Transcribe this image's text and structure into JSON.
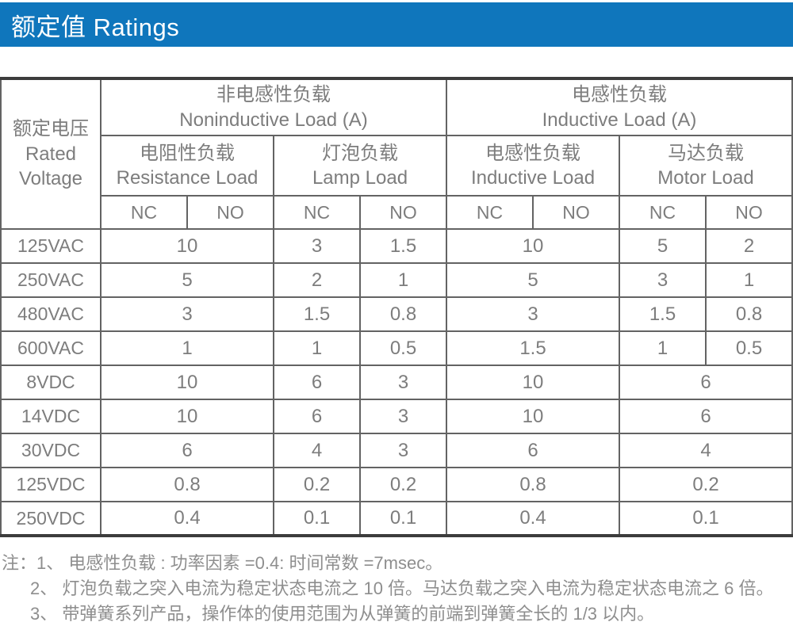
{
  "title": {
    "text": "额定值 Ratings"
  },
  "colors": {
    "accent_blue": "#0F76BC",
    "header_bg": "#f1f0ee",
    "label_bg": "#f0efed",
    "table_text": "#7d7d7d",
    "border_inner": "#636363",
    "border_heavy": "#3c3c3c"
  },
  "table": {
    "corner_header": {
      "zh": "额定电压",
      "en1": "Rated",
      "en2": "Voltage"
    },
    "groups": [
      {
        "zh": "非电感性负载",
        "en": "Noninductive Load (A)"
      },
      {
        "zh": "电感性负载",
        "en": "Inductive Load (A)"
      }
    ],
    "subgroups": [
      {
        "zh": "电阻性负载",
        "en": "Resistance Load"
      },
      {
        "zh": "灯泡负载",
        "en": "Lamp Load"
      },
      {
        "zh": "电感性负载",
        "en": "Inductive Load"
      },
      {
        "zh": "马达负载",
        "en": "Motor Load"
      }
    ],
    "contact_headers": [
      "NC",
      "NO",
      "NC",
      "NO",
      "NC",
      "NO",
      "NC",
      "NO"
    ],
    "rows": [
      {
        "label": "125VAC",
        "cells": [
          {
            "v": "10",
            "span": 2
          },
          {
            "v": "3"
          },
          {
            "v": "1.5"
          },
          {
            "v": "10",
            "span": 2
          },
          {
            "v": "5"
          },
          {
            "v": "2"
          }
        ]
      },
      {
        "label": "250VAC",
        "cells": [
          {
            "v": "5",
            "span": 2
          },
          {
            "v": "2"
          },
          {
            "v": "1"
          },
          {
            "v": "5",
            "span": 2
          },
          {
            "v": "3"
          },
          {
            "v": "1"
          }
        ]
      },
      {
        "label": "480VAC",
        "cells": [
          {
            "v": "3",
            "span": 2
          },
          {
            "v": "1.5"
          },
          {
            "v": "0.8"
          },
          {
            "v": "3",
            "span": 2
          },
          {
            "v": "1.5"
          },
          {
            "v": "0.8"
          }
        ]
      },
      {
        "label": "600VAC",
        "cells": [
          {
            "v": "1",
            "span": 2
          },
          {
            "v": "1"
          },
          {
            "v": "0.5"
          },
          {
            "v": "1.5",
            "span": 2
          },
          {
            "v": "1"
          },
          {
            "v": "0.5"
          }
        ]
      },
      {
        "label": "8VDC",
        "cells": [
          {
            "v": "10",
            "span": 2
          },
          {
            "v": "6"
          },
          {
            "v": "3"
          },
          {
            "v": "10",
            "span": 2
          },
          {
            "v": "6",
            "span": 2
          }
        ]
      },
      {
        "label": "14VDC",
        "cells": [
          {
            "v": "10",
            "span": 2
          },
          {
            "v": "6"
          },
          {
            "v": "3"
          },
          {
            "v": "10",
            "span": 2
          },
          {
            "v": "6",
            "span": 2
          }
        ]
      },
      {
        "label": "30VDC",
        "cells": [
          {
            "v": "6",
            "span": 2
          },
          {
            "v": "4"
          },
          {
            "v": "3"
          },
          {
            "v": "6",
            "span": 2
          },
          {
            "v": "4",
            "span": 2
          }
        ]
      },
      {
        "label": "125VDC",
        "cells": [
          {
            "v": "0.8",
            "span": 2
          },
          {
            "v": "0.2"
          },
          {
            "v": "0.2"
          },
          {
            "v": "0.8",
            "span": 2
          },
          {
            "v": "0.2",
            "span": 2
          }
        ]
      },
      {
        "label": "250VDC",
        "cells": [
          {
            "v": "0.4",
            "span": 2
          },
          {
            "v": "0.1"
          },
          {
            "v": "0.1"
          },
          {
            "v": "0.4",
            "span": 2
          },
          {
            "v": "0.1",
            "span": 2
          }
        ]
      }
    ]
  },
  "notes": {
    "line1": "注：1、 电感性负载 : 功率因素 =0.4: 时间常数 =7msec。",
    "line2": "2、 灯泡负载之突入电流为稳定状态电流之 10 倍。马达负载之突入电流为稳定状态电流之 6 倍。",
    "line3": "3、 带弹簧系列产品，操作体的使用范围为从弹簧的前端到弹簧全长的 1/3 以内。"
  }
}
